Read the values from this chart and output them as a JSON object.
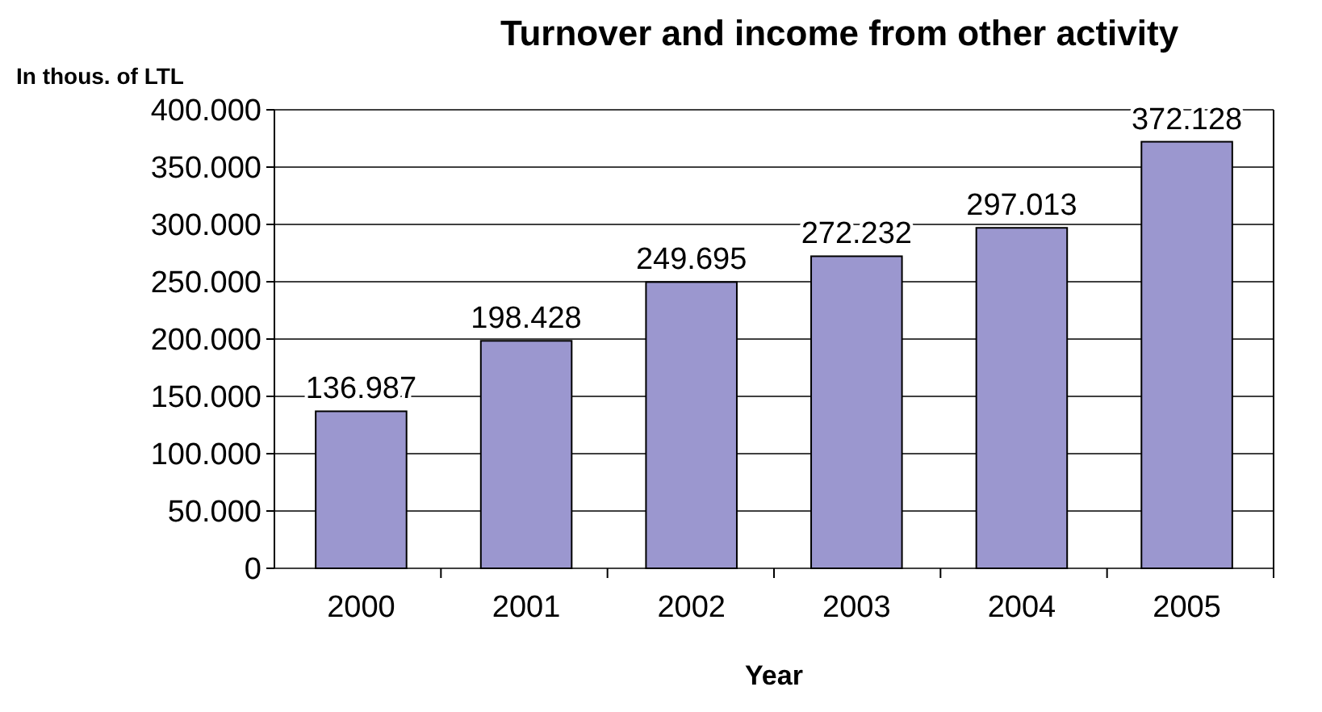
{
  "chart_data": {
    "type": "bar",
    "title": "Turnover and income from other activity",
    "xlabel": "Year",
    "ylabel": "In thous. of LTL",
    "categories": [
      "2000",
      "2001",
      "2002",
      "2003",
      "2004",
      "2005"
    ],
    "values": [
      136987,
      198428,
      249695,
      272232,
      297013,
      372128
    ],
    "value_labels": [
      "136.987",
      "198.428",
      "249.695",
      "272.232",
      "297.013",
      "372.128"
    ],
    "color": "#9b97cf",
    "ylim": [
      0,
      400000
    ],
    "yticks": [
      {
        "value": 0,
        "label": "0"
      },
      {
        "value": 50000,
        "label": "50.000"
      },
      {
        "value": 100000,
        "label": "100.000"
      },
      {
        "value": 150000,
        "label": "150.000"
      },
      {
        "value": 200000,
        "label": "200.000"
      },
      {
        "value": 250000,
        "label": "250.000"
      },
      {
        "value": 300000,
        "label": "300.000"
      },
      {
        "value": 350000,
        "label": "350.000"
      },
      {
        "value": 400000,
        "label": "400.000"
      }
    ],
    "grid": "y"
  }
}
